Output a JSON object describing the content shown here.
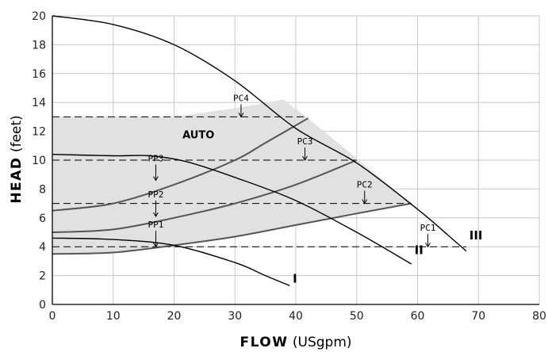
{
  "chart_data": {
    "type": "line",
    "xlabel_bold": "FLOW",
    "xlabel_rest": " (USgpm)",
    "ylabel_bold": "HEAD",
    "ylabel_rest": " (feet)",
    "xlim": [
      0,
      80
    ],
    "ylim": [
      0,
      20
    ],
    "xticks": [
      "0",
      "10",
      "20",
      "30",
      "40",
      "50",
      "60",
      "70",
      "80"
    ],
    "yticks": [
      "0",
      "2",
      "4",
      "6",
      "8",
      "10",
      "12",
      "14",
      "16",
      "18",
      "20"
    ],
    "grid": true,
    "colors": {
      "grid": "#c8c8c8",
      "shade": "#e1e1e1",
      "curve": "#000000",
      "pp": "#555555"
    },
    "auto_label": "AUTO",
    "auto_region": [
      [
        0,
        3.5
      ],
      [
        10,
        3.6
      ],
      [
        20,
        4.1
      ],
      [
        30,
        4.7
      ],
      [
        40,
        5.5
      ],
      [
        50,
        6.3
      ],
      [
        59,
        7
      ],
      [
        42,
        12.9
      ],
      [
        38,
        14.2
      ],
      [
        30,
        13.6
      ],
      [
        20,
        13.0
      ],
      [
        0,
        13.0
      ]
    ],
    "speed_curves": [
      {
        "label": "I",
        "points": [
          [
            0,
            4.6
          ],
          [
            10,
            4.5
          ],
          [
            20,
            4.1
          ],
          [
            30,
            2.9
          ],
          [
            35,
            2.0
          ],
          [
            39,
            1.3
          ]
        ]
      },
      {
        "label": "II",
        "points": [
          [
            0,
            10.4
          ],
          [
            10,
            10.3
          ],
          [
            16,
            10.3
          ],
          [
            22,
            9.9
          ],
          [
            30,
            8.8
          ],
          [
            40,
            7.2
          ],
          [
            50,
            5.0
          ],
          [
            59,
            2.8
          ]
        ]
      },
      {
        "label": "III",
        "points": [
          [
            0,
            20
          ],
          [
            10,
            19.4
          ],
          [
            20,
            18
          ],
          [
            30,
            15.5
          ],
          [
            40,
            12.2
          ],
          [
            50,
            9.8
          ],
          [
            60,
            6.6
          ],
          [
            65,
            4.8
          ],
          [
            68,
            3.7
          ]
        ]
      }
    ],
    "pp_curves": [
      {
        "name": "PP1",
        "points": [
          [
            0,
            3.5
          ],
          [
            10,
            3.6
          ],
          [
            20,
            4.1
          ],
          [
            30,
            4.7
          ],
          [
            40,
            5.5
          ],
          [
            50,
            6.3
          ],
          [
            59,
            7
          ]
        ]
      },
      {
        "name": "PP2",
        "points": [
          [
            0,
            5.0
          ],
          [
            10,
            5.2
          ],
          [
            20,
            6.0
          ],
          [
            30,
            7.0
          ],
          [
            40,
            8.3
          ],
          [
            50,
            10.0
          ]
        ]
      },
      {
        "name": "PP3",
        "points": [
          [
            0,
            6.5
          ],
          [
            10,
            7.0
          ],
          [
            20,
            8.3
          ],
          [
            30,
            10.0
          ],
          [
            35,
            11.2
          ],
          [
            42,
            12.9
          ]
        ]
      }
    ],
    "pc_lines": [
      {
        "name": "PC1",
        "y": 4,
        "x_end": 68,
        "label_x": 61.7
      },
      {
        "name": "PC2",
        "y": 7,
        "x_end": 59,
        "label_x": 51.3
      },
      {
        "name": "PC3",
        "y": 10,
        "x_end": 50,
        "label_x": 41.5
      },
      {
        "name": "PC4",
        "y": 13,
        "x_end": 42,
        "label_x": 31.0
      }
    ],
    "pp_labels": [
      {
        "name": "PP3",
        "x": 17,
        "y": 8.6
      },
      {
        "name": "PP2",
        "x": 17,
        "y": 6.1
      },
      {
        "name": "PP1",
        "x": 17,
        "y": 4.0
      }
    ],
    "curve_labels": [
      {
        "label": "I",
        "x": 39.5,
        "y": 1.5
      },
      {
        "label": "II",
        "x": 59.5,
        "y": 3.5
      },
      {
        "label": "III",
        "x": 68.5,
        "y": 4.5
      }
    ],
    "auto_label_pos": {
      "x": 24,
      "y": 11.5
    }
  }
}
